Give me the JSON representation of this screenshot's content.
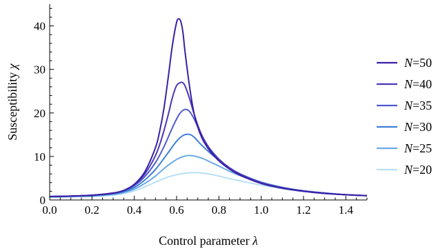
{
  "chart_data": {
    "type": "line",
    "xlabel_text": "Control parameter",
    "xlabel_symbol": "λ",
    "ylabel_text": "Susceptibility",
    "ylabel_symbol": "χ",
    "xlim": [
      0.0,
      1.5
    ],
    "ylim": [
      0,
      45
    ],
    "xticks": [
      "0.0",
      "0.2",
      "0.4",
      "0.6",
      "0.8",
      "1.0",
      "1.2",
      "1.4"
    ],
    "xtick_values": [
      0.0,
      0.2,
      0.4,
      0.6,
      0.8,
      1.0,
      1.2,
      1.4
    ],
    "yticks": [
      "0",
      "10",
      "20",
      "30",
      "40"
    ],
    "ytick_values": [
      0,
      10,
      20,
      30,
      40
    ],
    "grid": false,
    "legend_position": "right",
    "series": [
      {
        "name": "N=50",
        "legend_var": "N",
        "legend_value": "=50",
        "color": "#3b1fa3",
        "x": [
          0.0,
          0.1,
          0.2,
          0.3,
          0.35,
          0.4,
          0.45,
          0.5,
          0.52,
          0.54,
          0.56,
          0.58,
          0.6,
          0.61,
          0.62,
          0.63,
          0.64,
          0.66,
          0.68,
          0.7,
          0.72,
          0.74,
          0.76,
          0.8,
          0.85,
          0.9,
          1.0,
          1.1,
          1.2,
          1.3,
          1.4,
          1.5
        ],
        "y": [
          0.8,
          0.9,
          1.1,
          1.6,
          2.2,
          3.6,
          6.5,
          12.0,
          15.8,
          21.0,
          28.0,
          35.5,
          40.8,
          41.6,
          41.0,
          38.5,
          34.0,
          26.5,
          20.5,
          16.8,
          14.2,
          12.5,
          11.1,
          9.0,
          7.1,
          5.7,
          3.8,
          2.7,
          2.0,
          1.5,
          1.2,
          1.0
        ]
      },
      {
        "name": "N=40",
        "legend_var": "N",
        "legend_value": "=40",
        "color": "#4b36b8",
        "x": [
          0.0,
          0.1,
          0.2,
          0.3,
          0.35,
          0.4,
          0.45,
          0.5,
          0.53,
          0.56,
          0.58,
          0.6,
          0.62,
          0.63,
          0.64,
          0.66,
          0.68,
          0.7,
          0.72,
          0.74,
          0.76,
          0.8,
          0.85,
          0.9,
          1.0,
          1.1,
          1.2,
          1.3,
          1.4,
          1.5
        ],
        "y": [
          0.8,
          0.9,
          1.1,
          1.6,
          2.2,
          3.5,
          6.0,
          10.2,
          14.2,
          19.5,
          23.5,
          26.3,
          27.0,
          26.9,
          26.2,
          23.5,
          20.2,
          17.2,
          14.8,
          13.0,
          11.5,
          9.3,
          7.3,
          5.9,
          3.9,
          2.8,
          2.0,
          1.5,
          1.2,
          1.0
        ]
      },
      {
        "name": "N=35",
        "legend_var": "N",
        "legend_value": "=35",
        "color": "#4f59cf",
        "x": [
          0.0,
          0.1,
          0.2,
          0.3,
          0.35,
          0.4,
          0.45,
          0.5,
          0.54,
          0.58,
          0.61,
          0.63,
          0.645,
          0.66,
          0.68,
          0.7,
          0.72,
          0.74,
          0.76,
          0.8,
          0.85,
          0.9,
          1.0,
          1.1,
          1.2,
          1.3,
          1.4,
          1.5
        ],
        "y": [
          0.8,
          0.9,
          1.1,
          1.5,
          2.1,
          3.3,
          5.4,
          8.6,
          12.2,
          16.6,
          19.5,
          20.6,
          20.8,
          20.4,
          18.9,
          16.8,
          14.7,
          13.0,
          11.6,
          9.4,
          7.4,
          6.0,
          4.0,
          2.8,
          2.1,
          1.6,
          1.2,
          1.0
        ]
      },
      {
        "name": "N=30",
        "legend_var": "N",
        "legend_value": "=30",
        "color": "#3f7fd6",
        "x": [
          0.0,
          0.1,
          0.2,
          0.3,
          0.35,
          0.4,
          0.45,
          0.5,
          0.55,
          0.6,
          0.63,
          0.65,
          0.67,
          0.69,
          0.71,
          0.74,
          0.77,
          0.8,
          0.85,
          0.9,
          1.0,
          1.1,
          1.2,
          1.3,
          1.4,
          1.5
        ],
        "y": [
          0.8,
          0.9,
          1.0,
          1.4,
          1.9,
          2.9,
          4.6,
          7.0,
          10.2,
          13.5,
          14.8,
          15.1,
          14.9,
          14.1,
          13.0,
          11.6,
          10.3,
          9.2,
          7.4,
          6.0,
          4.1,
          2.9,
          2.1,
          1.6,
          1.2,
          1.0
        ]
      },
      {
        "name": "N=25",
        "legend_var": "N",
        "legend_value": "=25",
        "color": "#6aaae8",
        "x": [
          0.0,
          0.1,
          0.2,
          0.3,
          0.35,
          0.4,
          0.45,
          0.5,
          0.55,
          0.6,
          0.64,
          0.67,
          0.7,
          0.73,
          0.76,
          0.8,
          0.85,
          0.9,
          1.0,
          1.1,
          1.2,
          1.3,
          1.4,
          1.5
        ],
        "y": [
          0.7,
          0.8,
          0.9,
          1.3,
          1.7,
          2.5,
          3.8,
          5.5,
          7.6,
          9.3,
          10.1,
          10.2,
          9.9,
          9.4,
          8.7,
          7.8,
          6.6,
          5.6,
          4.0,
          2.9,
          2.1,
          1.6,
          1.2,
          1.0
        ]
      },
      {
        "name": "N=20",
        "legend_var": "N",
        "legend_value": "=20",
        "color": "#b7e0f5",
        "x": [
          0.0,
          0.1,
          0.2,
          0.3,
          0.35,
          0.4,
          0.45,
          0.5,
          0.55,
          0.6,
          0.65,
          0.69,
          0.72,
          0.76,
          0.8,
          0.85,
          0.9,
          1.0,
          1.1,
          1.2,
          1.3,
          1.4,
          1.5
        ],
        "y": [
          0.6,
          0.7,
          0.8,
          1.1,
          1.5,
          2.1,
          3.0,
          4.1,
          5.1,
          5.8,
          6.2,
          6.3,
          6.2,
          5.9,
          5.5,
          4.9,
          4.4,
          3.4,
          2.6,
          2.0,
          1.5,
          1.2,
          1.0
        ]
      }
    ]
  }
}
